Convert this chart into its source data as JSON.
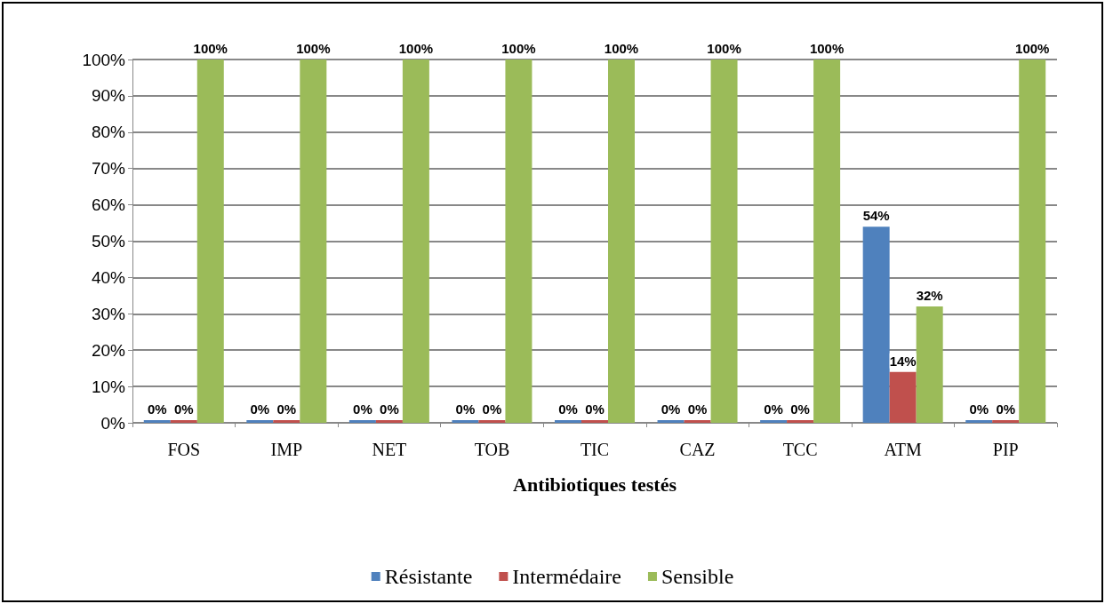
{
  "chart_data": {
    "type": "bar",
    "xlabel": "Antibiotiques testés",
    "categories": [
      "FOS",
      "IMP",
      "NET",
      "TOB",
      "TIC",
      "CAZ",
      "TCC",
      "ATM",
      "PIP"
    ],
    "series": [
      {
        "name": "Résistante",
        "color": "#4f81bd",
        "values": [
          0,
          0,
          0,
          0,
          0,
          0,
          0,
          54,
          0
        ],
        "value_labels": [
          "0%",
          "0%",
          "0%",
          "0%",
          "0%",
          "0%",
          "0%",
          "54%",
          "0%"
        ]
      },
      {
        "name": "Intermédaire",
        "color": "#c0504d",
        "values": [
          0,
          0,
          0,
          0,
          0,
          0,
          0,
          14,
          0
        ],
        "value_labels": [
          "0%",
          "0%",
          "0%",
          "0%",
          "0%",
          "0%",
          "0%",
          "14%",
          "0%"
        ]
      },
      {
        "name": "Sensible",
        "color": "#9bbb59",
        "values": [
          100,
          100,
          100,
          100,
          100,
          100,
          100,
          32,
          100
        ],
        "value_labels": [
          "100%",
          "100%",
          "100%",
          "100%",
          "100%",
          "100%",
          "100%",
          "32%",
          "100%"
        ]
      }
    ],
    "ylim": [
      0,
      100
    ],
    "yticks": [
      {
        "value": 0,
        "label": "0%"
      },
      {
        "value": 10,
        "label": "10%"
      },
      {
        "value": 20,
        "label": "20%"
      },
      {
        "value": 30,
        "label": "30%"
      },
      {
        "value": 40,
        "label": "40%"
      },
      {
        "value": 50,
        "label": "50%"
      },
      {
        "value": 60,
        "label": "60%"
      },
      {
        "value": 70,
        "label": "70%"
      },
      {
        "value": 80,
        "label": "80%"
      },
      {
        "value": 90,
        "label": "90%"
      },
      {
        "value": 100,
        "label": "100%"
      }
    ],
    "grid": "y",
    "legend": "bottom"
  }
}
